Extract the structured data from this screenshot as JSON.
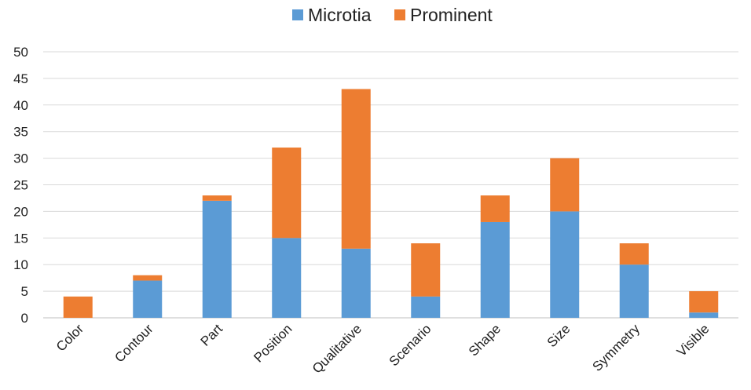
{
  "chart_data": {
    "type": "bar",
    "stacked": true,
    "categories": [
      "Color",
      "Contour",
      "Part",
      "Position",
      "Qualitative",
      "Scenario",
      "Shape",
      "Size",
      "Symmetry",
      "Visible"
    ],
    "series": [
      {
        "name": "Microtia",
        "color": "#5b9bd5",
        "values": [
          0,
          7,
          22,
          15,
          13,
          4,
          18,
          20,
          10,
          1
        ]
      },
      {
        "name": "Prominent",
        "color": "#ed7d31",
        "values": [
          4,
          1,
          1,
          17,
          30,
          10,
          5,
          10,
          4,
          4
        ]
      }
    ],
    "title": "",
    "xlabel": "",
    "ylabel": "",
    "ylim": [
      0,
      50
    ],
    "yticks": [
      "0",
      "5",
      "10",
      "15",
      "20",
      "25",
      "30",
      "35",
      "40",
      "45",
      "50"
    ],
    "grid": true,
    "legend_position": "top-center"
  }
}
